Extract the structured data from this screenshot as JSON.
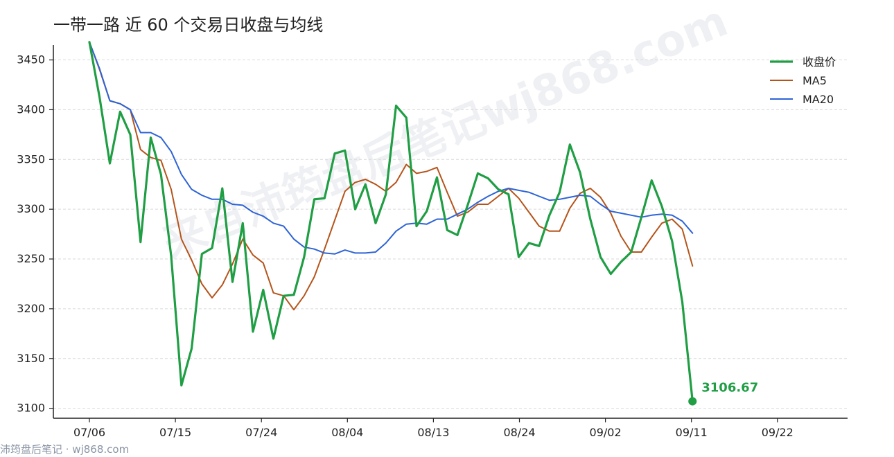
{
  "chart_data": {
    "type": "line",
    "title": "一带一路 近 60 个交易日收盘与均线",
    "xlabel": "",
    "ylabel": "",
    "ylim": [
      3090,
      3465
    ],
    "yticks": [
      3100,
      3150,
      3200,
      3250,
      3300,
      3350,
      3400,
      3450
    ],
    "xtick_labels": [
      "07/06",
      "07/15",
      "07/24",
      "08/04",
      "08/13",
      "08/24",
      "09/02",
      "09/11",
      "09/22"
    ],
    "x_count": 60,
    "grid": "horizontal dashed",
    "legend_position": "top-right",
    "series": [
      {
        "name": "收盘价",
        "color": "#1f9e44",
        "values": [
          3468,
          3412,
          3346,
          3398,
          3375,
          3267,
          3372,
          3335,
          3253,
          3123,
          3160,
          3255,
          3261,
          3321,
          3227,
          3286,
          3177,
          3219,
          3170,
          3213,
          3214,
          3252,
          3310,
          3311,
          3356,
          3359,
          3300,
          3325,
          3286,
          3315,
          3404,
          3392,
          3283,
          3298,
          3332,
          3279,
          3274,
          3304,
          3336,
          3331,
          3320,
          3315,
          3252,
          3266,
          3263,
          3294,
          3317,
          3365,
          3337,
          3290,
          3252,
          3235,
          3247,
          3257,
          3292,
          3329,
          3303,
          3268,
          3207,
          3107
        ]
      },
      {
        "name": "MA5",
        "color": "#b5541a",
        "values": [
          3468,
          3440,
          3409,
          3406,
          3400,
          3360,
          3352,
          3349,
          3320,
          3270,
          3249,
          3225,
          3211,
          3224,
          3245,
          3270,
          3254,
          3246,
          3216,
          3213,
          3199,
          3213,
          3232,
          3260,
          3289,
          3318,
          3327,
          3330,
          3325,
          3318,
          3327,
          3345,
          3336,
          3338,
          3342,
          3317,
          3293,
          3297,
          3305,
          3305,
          3313,
          3321,
          3311,
          3297,
          3283,
          3278,
          3278,
          3301,
          3316,
          3321,
          3312,
          3296,
          3273,
          3257,
          3257,
          3272,
          3286,
          3290,
          3280,
          3243
        ]
      },
      {
        "name": "MA20",
        "color": "#2d63d6",
        "values": [
          3468,
          3441,
          3409,
          3406,
          3400,
          3377,
          3377,
          3372,
          3358,
          3335,
          3320,
          3314,
          3310,
          3310,
          3305,
          3304,
          3297,
          3293,
          3286,
          3283,
          3270,
          3262,
          3260,
          3256,
          3255,
          3259,
          3256,
          3256,
          3257,
          3266,
          3278,
          3285,
          3286,
          3285,
          3290,
          3290,
          3295,
          3300,
          3307,
          3313,
          3318,
          3321,
          3319,
          3317,
          3313,
          3309,
          3310,
          3312,
          3314,
          3313,
          3305,
          3298,
          3296,
          3294,
          3292,
          3294,
          3295,
          3294,
          3288,
          3276
        ]
      }
    ],
    "last_value_label": "3106.67"
  },
  "watermark": "来自沛筠盘后笔记wj868.com",
  "footer": "沛筠盘后笔记 · wj868.com"
}
